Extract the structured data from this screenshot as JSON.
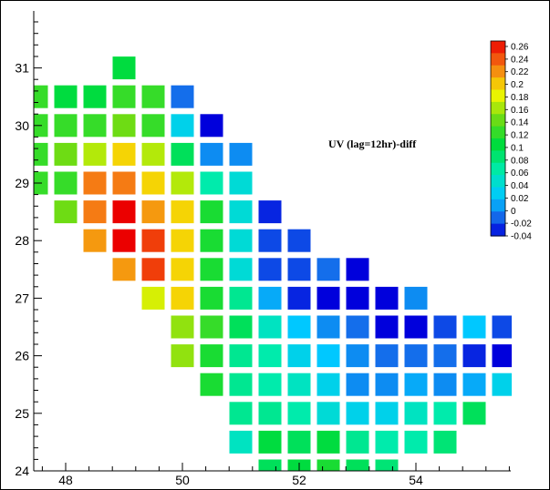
{
  "chart_data": {
    "type": "heatmap",
    "title": "UV (lag=12hr)-diff",
    "xlabel": "",
    "ylabel": "",
    "xlim": [
      47.6,
      55.5
    ],
    "ylim": [
      24,
      32
    ],
    "x_ticks": [
      "48",
      "50",
      "52",
      "54"
    ],
    "y_ticks": [
      "24",
      "25",
      "26",
      "27",
      "28",
      "29",
      "30",
      "31"
    ],
    "colorbar": {
      "range": [
        -0.04,
        0.26
      ],
      "tick_labels": [
        "0.26",
        "0.24",
        "0.22",
        "0.2",
        "0.18",
        "0.16",
        "0.14",
        "0.12",
        "0.1",
        "0.08",
        "0.06",
        "0.04",
        "0.02",
        "0",
        "-0.02",
        "-0.04"
      ]
    },
    "grid_step": 0.5,
    "cells": [
      {
        "x": 49.0,
        "y": 31.0,
        "v": 0.1
      },
      {
        "x": 47.5,
        "y": 30.5,
        "v": 0.12
      },
      {
        "x": 48.0,
        "y": 30.5,
        "v": 0.1
      },
      {
        "x": 48.5,
        "y": 30.5,
        "v": 0.1
      },
      {
        "x": 49.0,
        "y": 30.5,
        "v": 0.12
      },
      {
        "x": 49.5,
        "y": 30.5,
        "v": 0.12
      },
      {
        "x": 50.0,
        "y": 30.5,
        "v": -0.01
      },
      {
        "x": 47.5,
        "y": 30.0,
        "v": 0.12
      },
      {
        "x": 48.0,
        "y": 30.0,
        "v": 0.12
      },
      {
        "x": 48.5,
        "y": 30.0,
        "v": 0.12
      },
      {
        "x": 49.0,
        "y": 30.0,
        "v": 0.14
      },
      {
        "x": 49.5,
        "y": 30.0,
        "v": 0.12
      },
      {
        "x": 50.0,
        "y": 30.0,
        "v": 0.03
      },
      {
        "x": 50.5,
        "y": 30.0,
        "v": -0.04
      },
      {
        "x": 47.5,
        "y": 29.5,
        "v": 0.12
      },
      {
        "x": 48.0,
        "y": 29.5,
        "v": 0.14
      },
      {
        "x": 48.5,
        "y": 29.5,
        "v": 0.16
      },
      {
        "x": 49.0,
        "y": 29.5,
        "v": 0.19
      },
      {
        "x": 49.5,
        "y": 29.5,
        "v": 0.16
      },
      {
        "x": 50.0,
        "y": 29.5,
        "v": 0.09
      },
      {
        "x": 50.5,
        "y": 29.5,
        "v": 0.0
      },
      {
        "x": 51.0,
        "y": 29.5,
        "v": 0.0
      },
      {
        "x": 47.5,
        "y": 29.0,
        "v": 0.12
      },
      {
        "x": 48.0,
        "y": 29.0,
        "v": 0.12
      },
      {
        "x": 48.5,
        "y": 29.0,
        "v": 0.22
      },
      {
        "x": 49.0,
        "y": 29.0,
        "v": 0.22
      },
      {
        "x": 49.5,
        "y": 29.0,
        "v": 0.19
      },
      {
        "x": 50.0,
        "y": 29.0,
        "v": 0.16
      },
      {
        "x": 50.5,
        "y": 29.0,
        "v": 0.06
      },
      {
        "x": 51.0,
        "y": 29.0,
        "v": 0.04
      },
      {
        "x": 48.0,
        "y": 28.5,
        "v": 0.14
      },
      {
        "x": 48.5,
        "y": 28.5,
        "v": 0.22
      },
      {
        "x": 49.0,
        "y": 28.5,
        "v": 0.26
      },
      {
        "x": 49.5,
        "y": 28.5,
        "v": 0.21
      },
      {
        "x": 50.0,
        "y": 28.5,
        "v": 0.19
      },
      {
        "x": 50.5,
        "y": 28.5,
        "v": 0.11
      },
      {
        "x": 51.0,
        "y": 28.5,
        "v": 0.04
      },
      {
        "x": 51.5,
        "y": 28.5,
        "v": -0.03
      },
      {
        "x": 48.5,
        "y": 28.0,
        "v": 0.21
      },
      {
        "x": 49.0,
        "y": 28.0,
        "v": 0.26
      },
      {
        "x": 49.5,
        "y": 28.0,
        "v": 0.24
      },
      {
        "x": 50.0,
        "y": 28.0,
        "v": 0.19
      },
      {
        "x": 50.5,
        "y": 28.0,
        "v": 0.11
      },
      {
        "x": 51.0,
        "y": 28.0,
        "v": 0.04
      },
      {
        "x": 51.5,
        "y": 28.0,
        "v": -0.02
      },
      {
        "x": 52.0,
        "y": 28.0,
        "v": -0.02
      },
      {
        "x": 49.0,
        "y": 27.5,
        "v": 0.21
      },
      {
        "x": 49.5,
        "y": 27.5,
        "v": 0.24
      },
      {
        "x": 50.0,
        "y": 27.5,
        "v": 0.19
      },
      {
        "x": 50.5,
        "y": 27.5,
        "v": 0.11
      },
      {
        "x": 51.0,
        "y": 27.5,
        "v": 0.04
      },
      {
        "x": 51.5,
        "y": 27.5,
        "v": -0.02
      },
      {
        "x": 52.0,
        "y": 27.5,
        "v": -0.02
      },
      {
        "x": 52.5,
        "y": 27.5,
        "v": -0.01
      },
      {
        "x": 53.0,
        "y": 27.5,
        "v": -0.04
      },
      {
        "x": 49.5,
        "y": 27.0,
        "v": 0.17
      },
      {
        "x": 50.0,
        "y": 27.0,
        "v": 0.19
      },
      {
        "x": 50.5,
        "y": 27.0,
        "v": 0.11
      },
      {
        "x": 51.0,
        "y": 27.0,
        "v": 0.07
      },
      {
        "x": 51.5,
        "y": 27.0,
        "v": 0.01
      },
      {
        "x": 52.0,
        "y": 27.0,
        "v": -0.03
      },
      {
        "x": 52.5,
        "y": 27.0,
        "v": -0.04
      },
      {
        "x": 53.0,
        "y": 27.0,
        "v": -0.04
      },
      {
        "x": 53.5,
        "y": 27.0,
        "v": -0.04
      },
      {
        "x": 54.0,
        "y": 27.0,
        "v": 0.0
      },
      {
        "x": 50.0,
        "y": 26.5,
        "v": 0.15
      },
      {
        "x": 50.5,
        "y": 26.5,
        "v": 0.12
      },
      {
        "x": 51.0,
        "y": 26.5,
        "v": 0.09
      },
      {
        "x": 51.5,
        "y": 26.5,
        "v": 0.05
      },
      {
        "x": 52.0,
        "y": 26.5,
        "v": 0.02
      },
      {
        "x": 52.5,
        "y": 26.5,
        "v": 0.0
      },
      {
        "x": 53.0,
        "y": 26.5,
        "v": -0.01
      },
      {
        "x": 53.5,
        "y": 26.5,
        "v": -0.04
      },
      {
        "x": 54.0,
        "y": 26.5,
        "v": -0.04
      },
      {
        "x": 54.5,
        "y": 26.5,
        "v": -0.02
      },
      {
        "x": 55.0,
        "y": 26.5,
        "v": 0.02
      },
      {
        "x": 55.5,
        "y": 26.5,
        "v": -0.02
      },
      {
        "x": 50.0,
        "y": 26.0,
        "v": 0.15
      },
      {
        "x": 50.5,
        "y": 26.0,
        "v": 0.11
      },
      {
        "x": 51.0,
        "y": 26.0,
        "v": 0.07
      },
      {
        "x": 51.5,
        "y": 26.0,
        "v": 0.06
      },
      {
        "x": 52.0,
        "y": 26.0,
        "v": 0.03
      },
      {
        "x": 52.5,
        "y": 26.0,
        "v": 0.02
      },
      {
        "x": 53.0,
        "y": 26.0,
        "v": 0.0
      },
      {
        "x": 53.5,
        "y": 26.0,
        "v": -0.01
      },
      {
        "x": 54.0,
        "y": 26.0,
        "v": -0.01
      },
      {
        "x": 54.5,
        "y": 26.0,
        "v": -0.01
      },
      {
        "x": 55.0,
        "y": 26.0,
        "v": -0.03
      },
      {
        "x": 55.5,
        "y": 26.0,
        "v": -0.04
      },
      {
        "x": 50.5,
        "y": 25.5,
        "v": 0.11
      },
      {
        "x": 51.0,
        "y": 25.5,
        "v": 0.07
      },
      {
        "x": 51.5,
        "y": 25.5,
        "v": 0.06
      },
      {
        "x": 52.0,
        "y": 25.5,
        "v": 0.05
      },
      {
        "x": 52.5,
        "y": 25.5,
        "v": 0.03
      },
      {
        "x": 53.0,
        "y": 25.5,
        "v": 0.0
      },
      {
        "x": 53.5,
        "y": 25.5,
        "v": 0.0
      },
      {
        "x": 54.0,
        "y": 25.5,
        "v": 0.01
      },
      {
        "x": 54.5,
        "y": 25.5,
        "v": 0.0
      },
      {
        "x": 55.0,
        "y": 25.5,
        "v": 0.01
      },
      {
        "x": 55.5,
        "y": 25.5,
        "v": 0.03
      },
      {
        "x": 51.0,
        "y": 25.0,
        "v": 0.07
      },
      {
        "x": 51.5,
        "y": 25.0,
        "v": 0.07
      },
      {
        "x": 52.0,
        "y": 25.0,
        "v": 0.06
      },
      {
        "x": 52.5,
        "y": 25.0,
        "v": 0.04
      },
      {
        "x": 53.0,
        "y": 25.0,
        "v": 0.03
      },
      {
        "x": 53.5,
        "y": 25.0,
        "v": 0.03
      },
      {
        "x": 54.0,
        "y": 25.0,
        "v": 0.05
      },
      {
        "x": 54.5,
        "y": 25.0,
        "v": 0.06
      },
      {
        "x": 55.0,
        "y": 25.0,
        "v": 0.09
      },
      {
        "x": 51.0,
        "y": 24.5,
        "v": 0.05
      },
      {
        "x": 51.5,
        "y": 24.5,
        "v": 0.1
      },
      {
        "x": 52.0,
        "y": 24.5,
        "v": 0.09
      },
      {
        "x": 52.5,
        "y": 24.5,
        "v": 0.1
      },
      {
        "x": 53.0,
        "y": 24.5,
        "v": 0.07
      },
      {
        "x": 53.5,
        "y": 24.5,
        "v": 0.06
      },
      {
        "x": 54.0,
        "y": 24.5,
        "v": 0.06
      },
      {
        "x": 54.5,
        "y": 24.5,
        "v": 0.08
      },
      {
        "x": 51.5,
        "y": 24.0,
        "v": 0.09
      },
      {
        "x": 52.0,
        "y": 24.0,
        "v": 0.1
      },
      {
        "x": 52.5,
        "y": 24.0,
        "v": 0.11
      },
      {
        "x": 53.0,
        "y": 24.0,
        "v": 0.09
      },
      {
        "x": 53.5,
        "y": 24.0,
        "v": 0.08
      }
    ]
  }
}
